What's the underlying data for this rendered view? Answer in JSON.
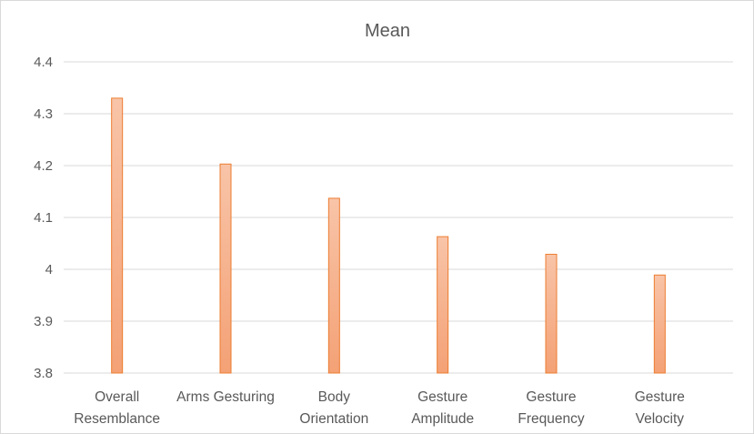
{
  "chart_data": {
    "type": "bar",
    "title": "Mean",
    "categories": [
      [
        "Overall",
        "Resemblance"
      ],
      [
        "Arms Gesturing"
      ],
      [
        "Body",
        "Orientation"
      ],
      [
        "Gesture",
        "Amplitude"
      ],
      [
        "Gesture",
        "Frequency"
      ],
      [
        "Gesture",
        "Velocity"
      ]
    ],
    "values": [
      4.33,
      4.203,
      4.137,
      4.063,
      4.029,
      3.989
    ],
    "ylim": [
      3.8,
      4.4
    ],
    "yticks": [
      "3.8",
      "3.9",
      "4",
      "4.1",
      "4.2",
      "4.3",
      "4.4"
    ],
    "grid": true,
    "legend": "none",
    "colors": {
      "bar_top": "#f8c4a8",
      "bar_bottom": "#f4a175",
      "bar_border": "#ed7d31",
      "text": "#595959",
      "grid": "#d9d9d9"
    }
  }
}
